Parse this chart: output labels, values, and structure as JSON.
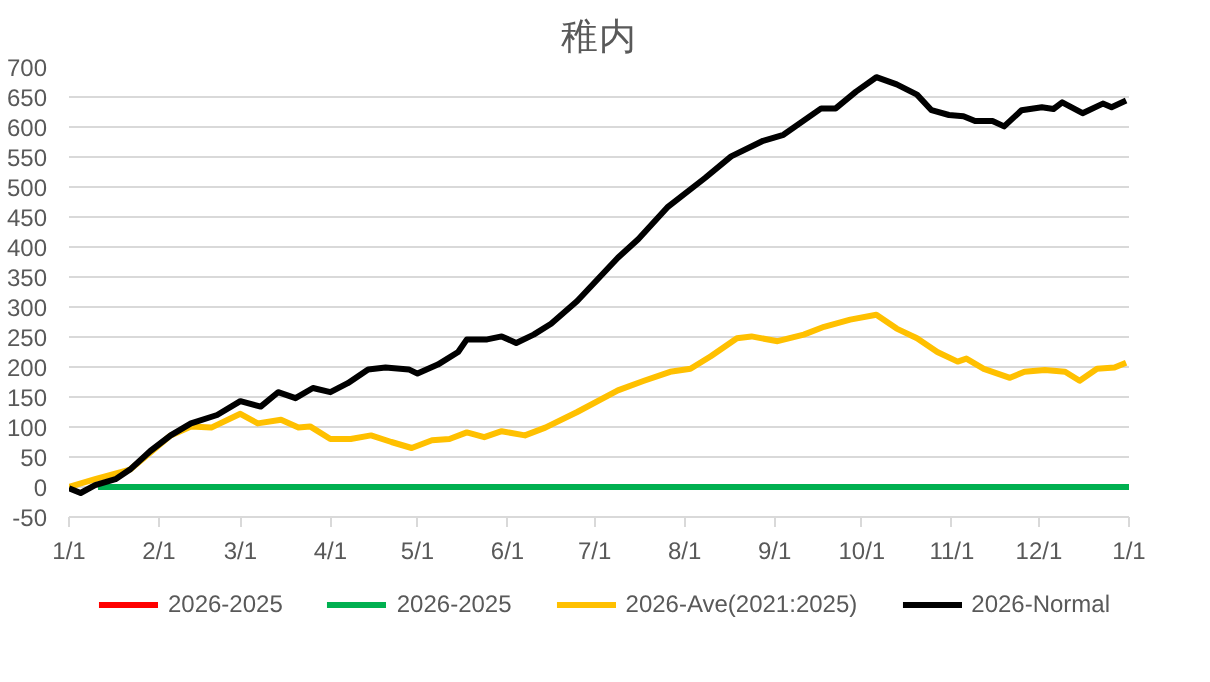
{
  "chart_data": {
    "type": "line",
    "title": "稚内",
    "xlim": [
      "2026-01-01",
      "2027-01-01"
    ],
    "ylim": [
      -50,
      700
    ],
    "xticks": [
      {
        "value": "2026-01-01",
        "label": "1/1"
      },
      {
        "value": "2026-02-01",
        "label": "2/1"
      },
      {
        "value": "2026-03-01",
        "label": "3/1"
      },
      {
        "value": "2026-04-01",
        "label": "4/1"
      },
      {
        "value": "2026-05-01",
        "label": "5/1"
      },
      {
        "value": "2026-06-01",
        "label": "6/1"
      },
      {
        "value": "2026-07-01",
        "label": "7/1"
      },
      {
        "value": "2026-08-01",
        "label": "8/1"
      },
      {
        "value": "2026-09-01",
        "label": "9/1"
      },
      {
        "value": "2026-10-01",
        "label": "10/1"
      },
      {
        "value": "2026-11-01",
        "label": "11/1"
      },
      {
        "value": "2026-12-01",
        "label": "12/1"
      },
      {
        "value": "2027-01-01",
        "label": "1/1"
      }
    ],
    "yticks": [
      -50,
      0,
      50,
      100,
      150,
      200,
      250,
      300,
      350,
      400,
      450,
      500,
      550,
      600,
      650,
      700
    ],
    "grid": "y",
    "legend": "bottom",
    "marker": "none",
    "line_style": "solid",
    "series": [
      {
        "name": "2026-2025",
        "color": "#ff0000"
      },
      {
        "name": "2026-2025",
        "color": "#00b050",
        "x": [
          "2026-01-11",
          "2027-01-01"
        ],
        "values": [
          0,
          0
        ]
      },
      {
        "name": "2026-Ave(2021:2025)",
        "color": "#ffc000",
        "x": [
          "2026-01-01",
          "2026-01-10",
          "2026-01-22",
          "2026-02-05",
          "2026-02-12",
          "2026-02-19",
          "2026-03-01",
          "2026-03-07",
          "2026-03-15",
          "2026-03-21",
          "2026-03-25",
          "2026-04-01",
          "2026-04-08",
          "2026-04-15",
          "2026-04-22",
          "2026-04-29",
          "2026-05-06",
          "2026-05-12",
          "2026-05-18",
          "2026-05-24",
          "2026-05-30",
          "2026-06-07",
          "2026-06-14",
          "2026-06-25",
          "2026-07-09",
          "2026-07-18",
          "2026-07-27",
          "2026-08-03",
          "2026-08-10",
          "2026-08-19",
          "2026-08-24",
          "2026-09-02",
          "2026-09-11",
          "2026-09-18",
          "2026-09-27",
          "2026-10-06",
          "2026-10-13",
          "2026-10-20",
          "2026-10-27",
          "2026-11-03",
          "2026-11-06",
          "2026-11-12",
          "2026-11-21",
          "2026-11-26",
          "2026-12-03",
          "2026-12-10",
          "2026-12-15",
          "2026-12-21",
          "2026-12-27",
          "2026-12-31"
        ],
        "values": [
          0,
          13,
          29,
          86,
          101,
          99,
          122,
          106,
          112,
          99,
          101,
          80,
          80,
          86,
          75,
          65,
          78,
          80,
          91,
          83,
          93,
          86,
          99,
          125,
          161,
          177,
          192,
          197,
          218,
          248,
          251,
          243,
          254,
          267,
          279,
          287,
          264,
          248,
          225,
          209,
          214,
          197,
          182,
          192,
          195,
          192,
          177,
          197,
          199,
          207
        ]
      },
      {
        "name": "2026-Normal",
        "color": "#000000",
        "x": [
          "2026-01-01",
          "2026-01-05",
          "2026-01-10",
          "2026-01-17",
          "2026-01-22",
          "2026-01-29",
          "2026-02-05",
          "2026-02-12",
          "2026-02-21",
          "2026-03-01",
          "2026-03-08",
          "2026-03-14",
          "2026-03-20",
          "2026-03-26",
          "2026-04-01",
          "2026-04-07",
          "2026-04-14",
          "2026-04-20",
          "2026-04-28",
          "2026-05-01",
          "2026-05-08",
          "2026-05-15",
          "2026-05-18",
          "2026-05-25",
          "2026-05-30",
          "2026-06-04",
          "2026-06-10",
          "2026-06-16",
          "2026-06-25",
          "2026-07-09",
          "2026-07-16",
          "2026-07-26",
          "2026-08-08",
          "2026-08-17",
          "2026-08-28",
          "2026-09-04",
          "2026-09-17",
          "2026-09-22",
          "2026-09-29",
          "2026-10-06",
          "2026-10-13",
          "2026-10-20",
          "2026-10-25",
          "2026-10-31",
          "2026-11-05",
          "2026-11-09",
          "2026-11-15",
          "2026-11-19",
          "2026-11-25",
          "2026-12-02",
          "2026-12-06",
          "2026-12-09",
          "2026-12-16",
          "2026-12-23",
          "2026-12-26",
          "2026-12-31"
        ],
        "values": [
          -2,
          -10,
          3,
          13,
          29,
          60,
          86,
          106,
          120,
          143,
          134,
          158,
          148,
          165,
          158,
          173,
          196,
          199,
          196,
          189,
          204,
          225,
          246,
          246,
          251,
          240,
          254,
          272,
          310,
          382,
          413,
          466,
          515,
          551,
          577,
          587,
          631,
          631,
          659,
          683,
          671,
          654,
          628,
          620,
          618,
          610,
          610,
          601,
          628,
          633,
          630,
          641,
          623,
          639,
          633,
          644
        ]
      }
    ]
  }
}
